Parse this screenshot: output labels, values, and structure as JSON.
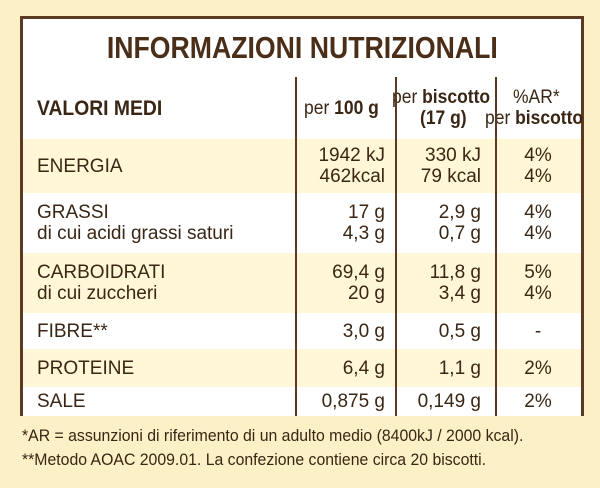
{
  "title": "INFORMAZIONI NUTRIZIONALI",
  "header": {
    "col1": "VALORI MEDI",
    "col2_prefix": "per ",
    "col2_bold": "100 g",
    "col3_line1_prefix": "per ",
    "col3_line1_bold": "biscotto",
    "col3_line2": "(17 g)",
    "col4_line1": "%AR*",
    "col4_line2_prefix": "per ",
    "col4_line2_bold": "biscotto"
  },
  "rows": [
    {
      "name": [
        "ENERGIA"
      ],
      "per100": [
        "1942 kJ",
        "462kcal"
      ],
      "perBiscuit": [
        "330 kJ",
        "79 kcal"
      ],
      "ar": [
        "4%",
        "4%"
      ]
    },
    {
      "name": [
        "GRASSI",
        "di cui acidi grassi saturi"
      ],
      "per100": [
        "17 g",
        "4,3 g"
      ],
      "perBiscuit": [
        "2,9 g",
        "0,7 g"
      ],
      "ar": [
        "4%",
        "4%"
      ]
    },
    {
      "name": [
        "CARBOIDRATI",
        "di cui zuccheri"
      ],
      "per100": [
        "69,4 g",
        "20 g"
      ],
      "perBiscuit": [
        "11,8 g",
        "3,4 g"
      ],
      "ar": [
        "5%",
        "4%"
      ]
    },
    {
      "name": [
        "FIBRE**"
      ],
      "per100": [
        "3,0 g"
      ],
      "perBiscuit": [
        "0,5 g"
      ],
      "ar": [
        "-"
      ]
    },
    {
      "name": [
        "PROTEINE"
      ],
      "per100": [
        "6,4 g"
      ],
      "perBiscuit": [
        "1,1 g"
      ],
      "ar": [
        "2%"
      ]
    },
    {
      "name": [
        "SALE"
      ],
      "per100": [
        "0,875 g"
      ],
      "perBiscuit": [
        "0,149 g"
      ],
      "ar": [
        "2%"
      ]
    }
  ],
  "footnotes": [
    "*AR = assunzioni di riferimento di un adulto medio (8400kJ / 2000 kcal).",
    "**Metodo AOAC 2009.01. La confezione contiene circa 20 biscotti."
  ],
  "colors": {
    "background": "#fbf0c6",
    "panel": "#fff9e2",
    "border": "#5a3a22",
    "text": "#3a2614"
  }
}
